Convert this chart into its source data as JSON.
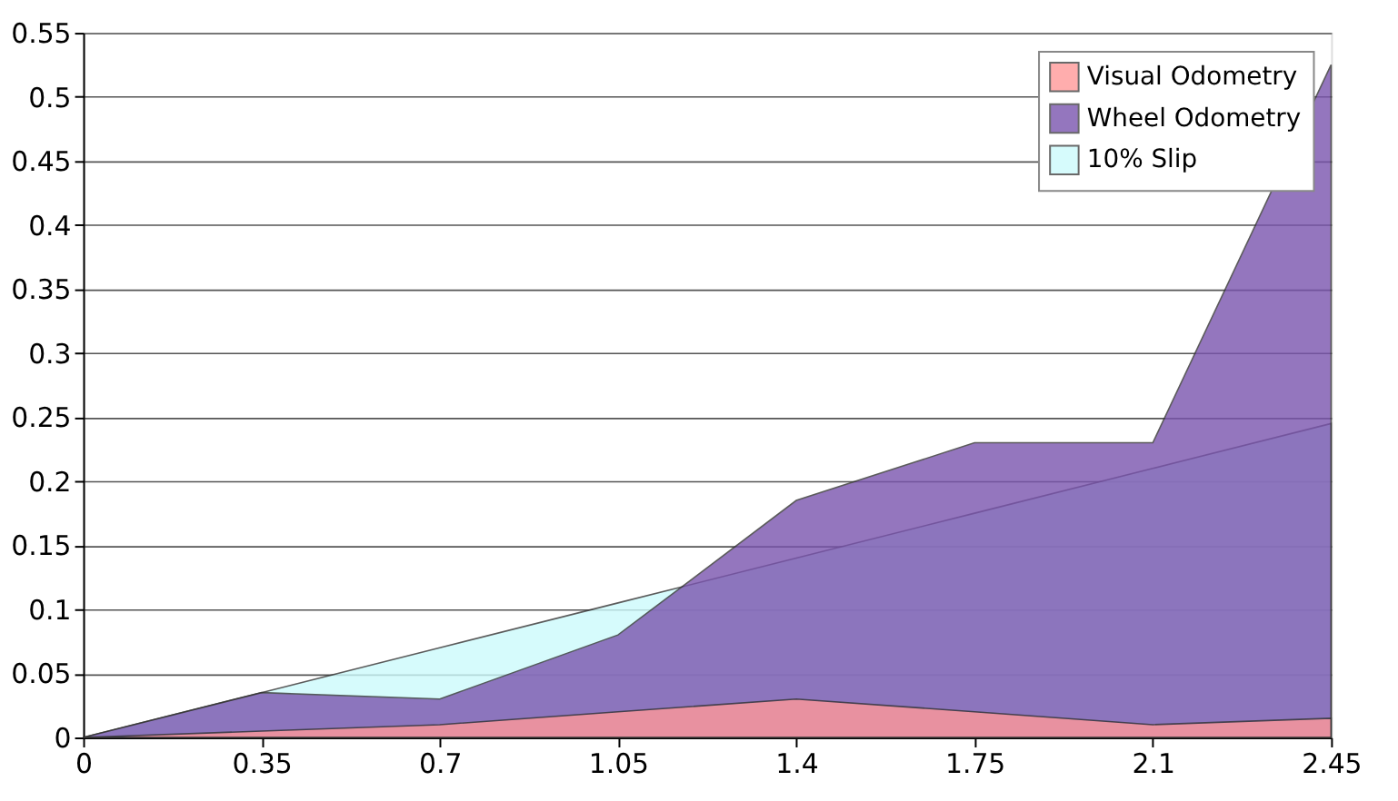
{
  "chart_data": {
    "type": "area",
    "x": [
      0,
      0.35,
      0.7,
      1.05,
      1.4,
      1.75,
      2.1,
      2.45
    ],
    "series": [
      {
        "name": "Visual Odometry",
        "color": "#ff9999",
        "values": [
          0,
          0.005,
          0.01,
          0.02,
          0.03,
          0.02,
          0.01,
          0.015
        ]
      },
      {
        "name": "Wheel Odometry",
        "color": "#7a54ae",
        "values": [
          0,
          0.035,
          0.03,
          0.08,
          0.185,
          0.23,
          0.23,
          0.525
        ]
      },
      {
        "name": "10% Slip",
        "color": "#ccfbfc",
        "values": [
          0,
          0.035,
          0.07,
          0.105,
          0.14,
          0.175,
          0.21,
          0.245
        ]
      }
    ],
    "xlim": [
      0,
      2.45
    ],
    "xticks": [
      0,
      0.35,
      0.7,
      1.05,
      1.4,
      1.75,
      2.1,
      2.45
    ],
    "ylim": [
      0,
      0.55
    ],
    "yticks": [
      0,
      0.05,
      0.1,
      0.15,
      0.2,
      0.25,
      0.3,
      0.35,
      0.4,
      0.45,
      0.5,
      0.55
    ],
    "grid": "y",
    "legend": "top right"
  }
}
